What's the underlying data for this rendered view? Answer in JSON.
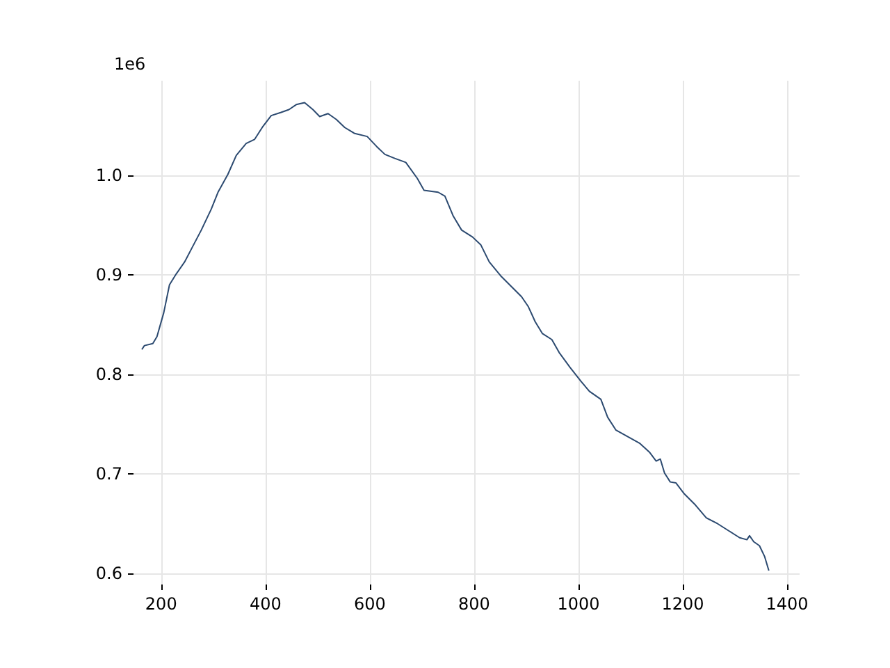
{
  "chart_data": {
    "type": "line",
    "annotations": [
      "1e6"
    ],
    "x": [
      163,
      168,
      184,
      192,
      205,
      216,
      229,
      245,
      259,
      277,
      296,
      309,
      328,
      344,
      363,
      379,
      395,
      411,
      429,
      445,
      459,
      475,
      491,
      504,
      520,
      536,
      552,
      571,
      595,
      613,
      629,
      648,
      669,
      691,
      704,
      731,
      744,
      760,
      776,
      797,
      813,
      829,
      851,
      872,
      891,
      904,
      917,
      931,
      949,
      963,
      984,
      1005,
      1021,
      1043,
      1056,
      1072,
      1096,
      1117,
      1136,
      1149,
      1157,
      1165,
      1176,
      1187,
      1203,
      1224,
      1245,
      1267,
      1288,
      1309,
      1323,
      1328,
      1336,
      1347,
      1357,
      1365
    ],
    "series": [
      {
        "color": "#2c4a70",
        "values": [
          0.825,
          0.829,
          0.831,
          0.838,
          0.862,
          0.89,
          0.901,
          0.913,
          0.927,
          0.945,
          0.966,
          0.983,
          1.001,
          1.02,
          1.032,
          1.036,
          1.049,
          1.06,
          1.063,
          1.066,
          1.071,
          1.073,
          1.066,
          1.059,
          1.062,
          1.056,
          1.048,
          1.042,
          1.039,
          1.029,
          1.021,
          1.017,
          1.013,
          0.997,
          0.985,
          0.983,
          0.979,
          0.959,
          0.945,
          0.938,
          0.93,
          0.913,
          0.899,
          0.888,
          0.878,
          0.868,
          0.853,
          0.841,
          0.835,
          0.822,
          0.807,
          0.793,
          0.783,
          0.775,
          0.757,
          0.744,
          0.737,
          0.731,
          0.722,
          0.713,
          0.715,
          0.701,
          0.692,
          0.691,
          0.68,
          0.669,
          0.656,
          0.65,
          0.643,
          0.636,
          0.634,
          0.638,
          0.632,
          0.628,
          0.617,
          0.603
        ]
      }
    ],
    "xlim": [
      147,
      1424
    ],
    "xticks": [
      200,
      400,
      600,
      800,
      1000,
      1200,
      1400
    ],
    "ylim": [
      0.589,
      1.095
    ],
    "yticks": [
      {
        "value": 0.6,
        "label": "0.6"
      },
      {
        "value": 0.7,
        "label": "0.7"
      },
      {
        "value": 0.8,
        "label": "0.8"
      },
      {
        "value": 0.9,
        "label": "0.9"
      },
      {
        "value": 1.0,
        "label": "1.0"
      }
    ],
    "grid": true,
    "marker": "none",
    "line_style": "solid"
  }
}
